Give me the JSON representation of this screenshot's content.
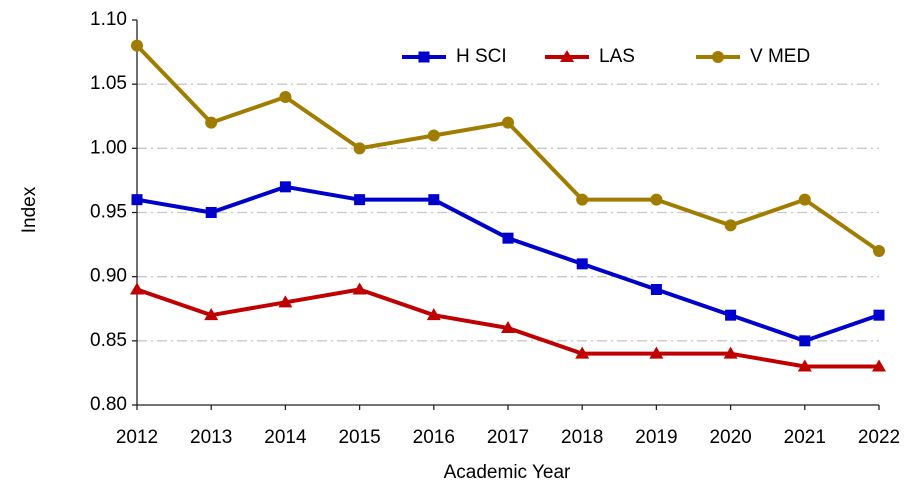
{
  "chart_data": {
    "type": "line",
    "xlabel": "Academic Year",
    "ylabel": "Index",
    "x": [
      2012,
      2013,
      2014,
      2015,
      2016,
      2017,
      2018,
      2019,
      2020,
      2021,
      2022
    ],
    "xlim": [
      2012,
      2022
    ],
    "xticks": [
      2012,
      2013,
      2014,
      2015,
      2016,
      2017,
      2018,
      2019,
      2020,
      2021,
      2022
    ],
    "ylim": [
      0.8,
      1.1
    ],
    "yticks": [
      {
        "value": 0.8,
        "label": "0.80"
      },
      0.85,
      {
        "value": 0.9,
        "label": "0.90"
      },
      0.95,
      {
        "value": 1.0,
        "label": "1.00"
      },
      1.05,
      {
        "value": 1.1,
        "label": "1.10"
      }
    ],
    "grid": true,
    "legend": "top",
    "series": [
      {
        "name": "H SCI",
        "color": "#0000cc",
        "marker": "square",
        "values": [
          0.96,
          0.95,
          0.97,
          0.96,
          0.96,
          0.93,
          0.91,
          0.89,
          0.87,
          0.85,
          0.87
        ]
      },
      {
        "name": "LAS",
        "color": "#c00000",
        "marker": "triangle",
        "values": [
          0.89,
          0.87,
          0.88,
          0.89,
          0.87,
          0.86,
          0.84,
          0.84,
          0.84,
          0.83,
          0.83
        ]
      },
      {
        "name": "V MED",
        "color": "#a07c00",
        "marker": "circle",
        "values": [
          1.08,
          1.02,
          1.04,
          1.0,
          1.01,
          1.02,
          0.96,
          0.96,
          0.94,
          0.96,
          0.92
        ]
      }
    ]
  }
}
